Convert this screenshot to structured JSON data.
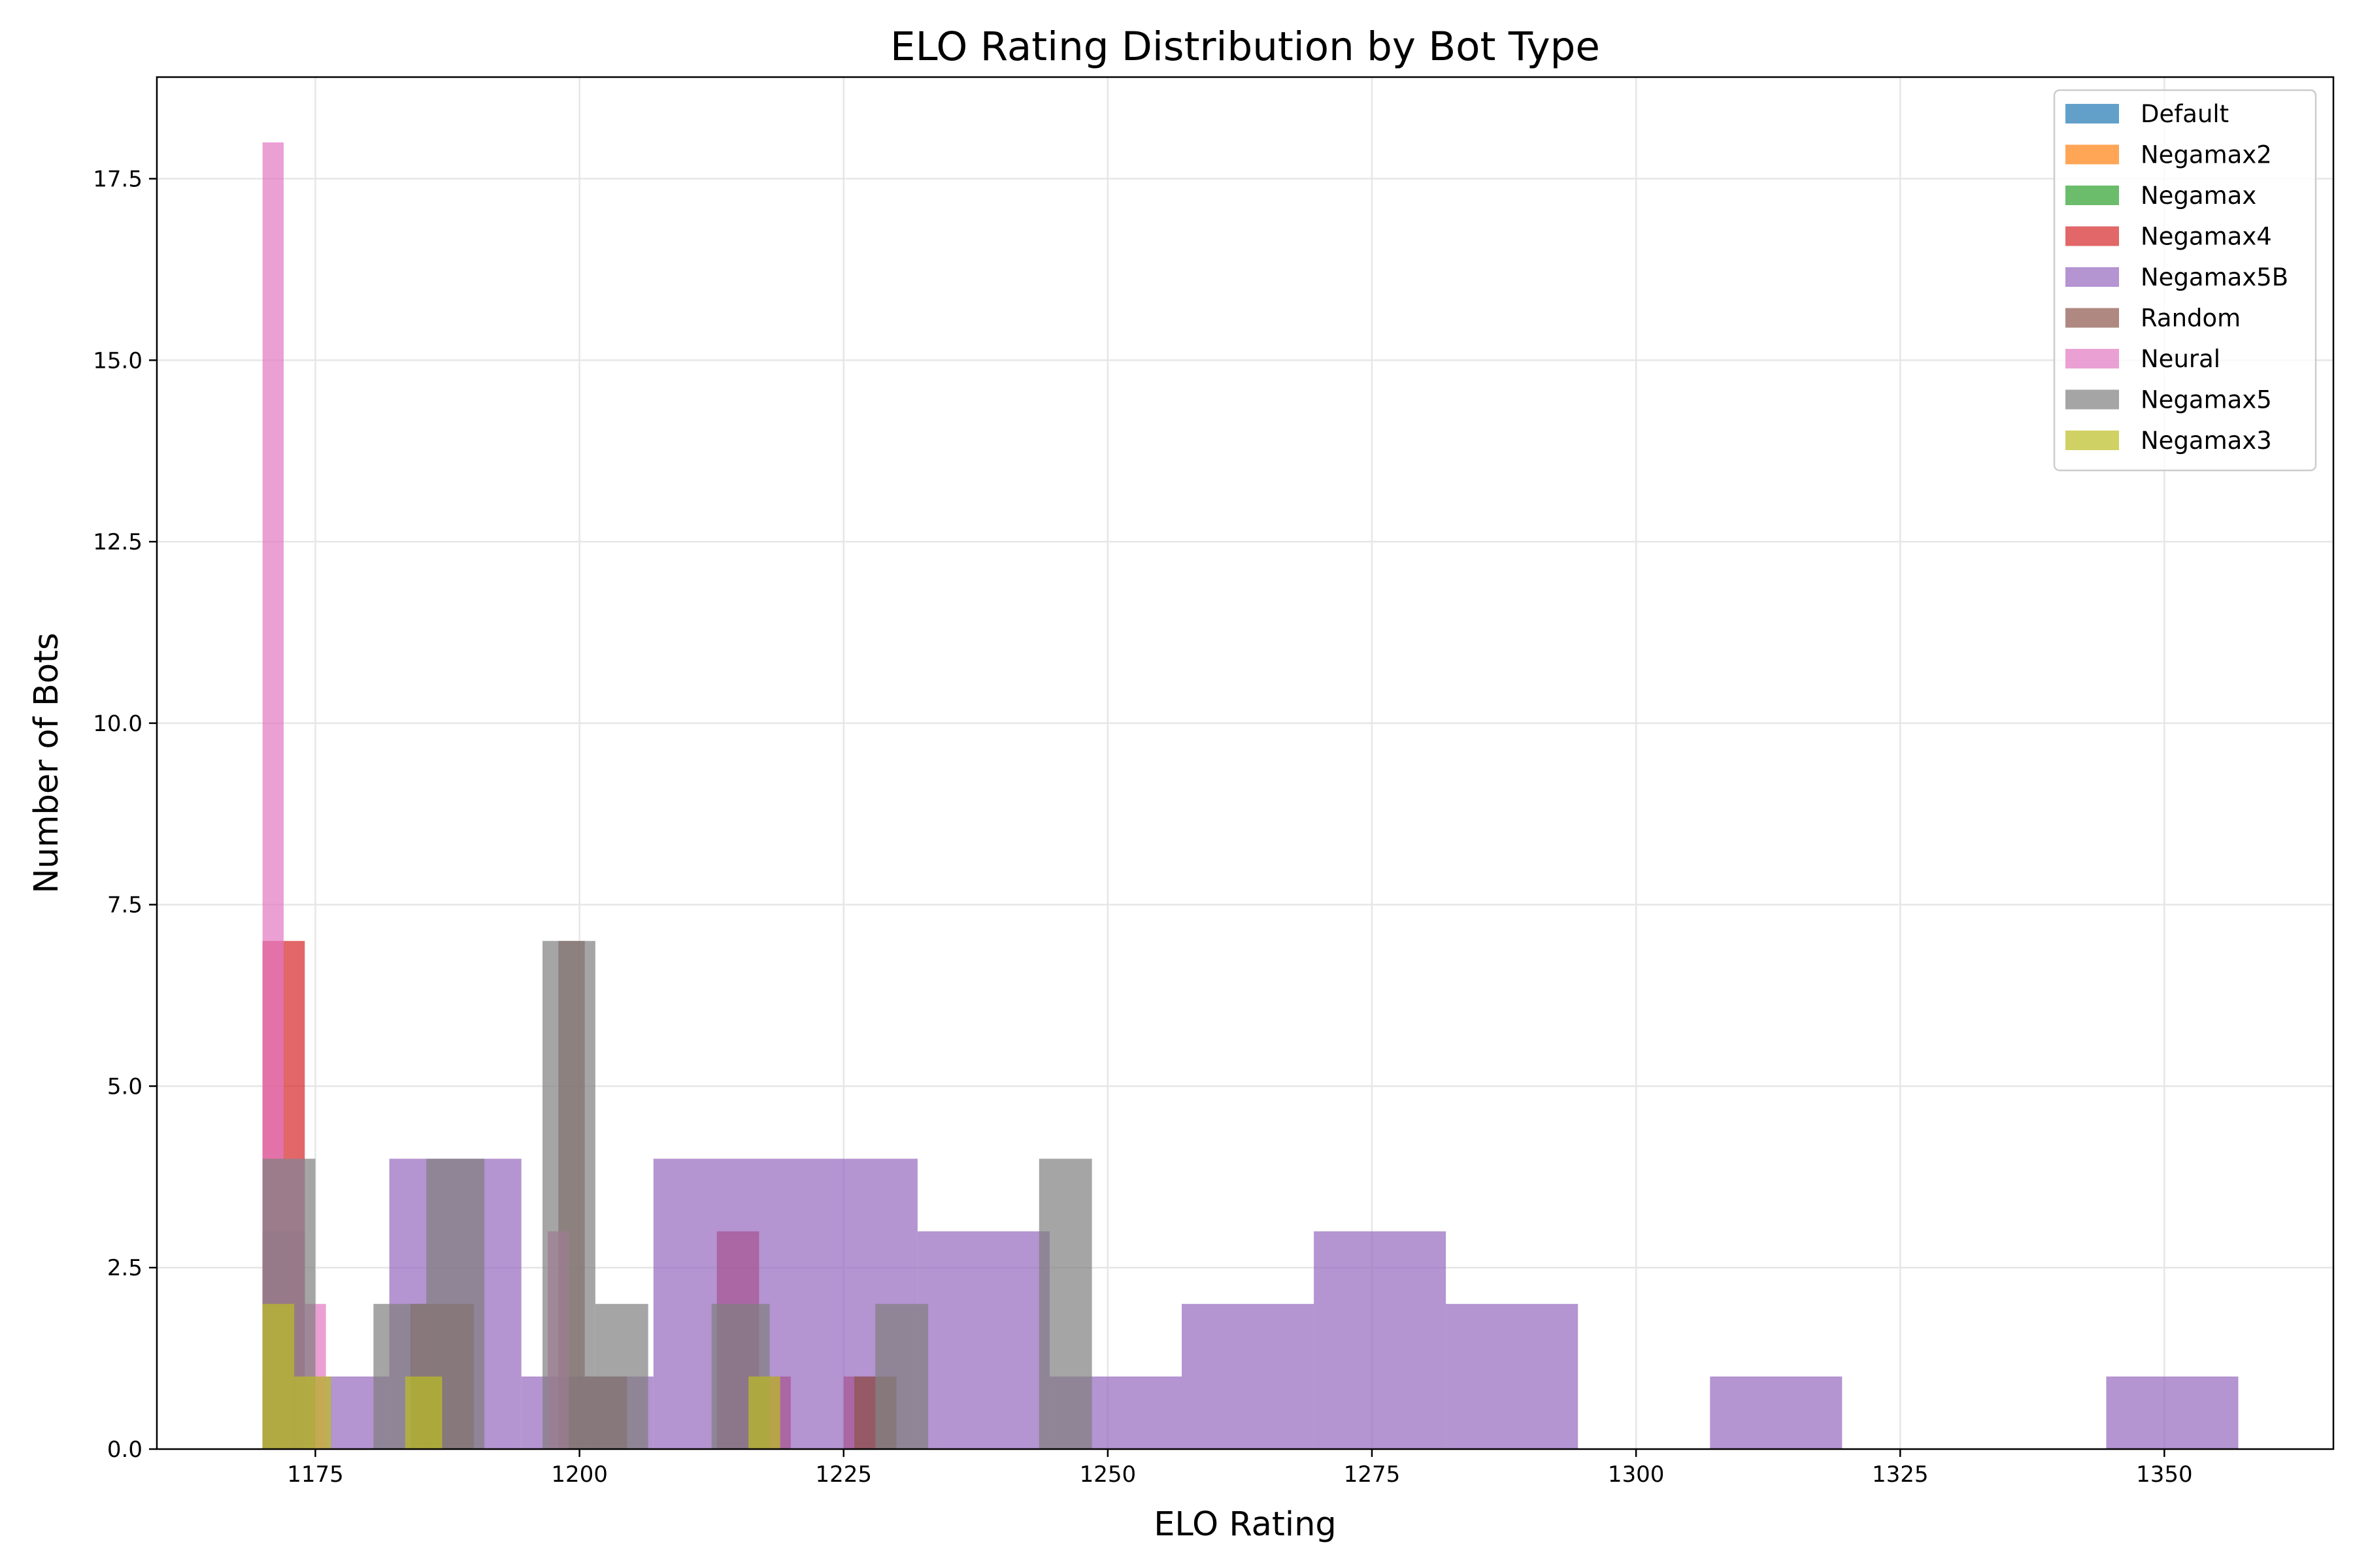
{
  "chart_data": {
    "type": "bar",
    "subtype": "histogram",
    "title": "ELO Rating Distribution by Bot Type",
    "xlabel": "ELO Rating",
    "ylabel": "Number of Bots",
    "xlim": [
      1160,
      1366
    ],
    "ylim": [
      0,
      18.9
    ],
    "xticks": [
      1175,
      1200,
      1225,
      1250,
      1275,
      1300,
      1325,
      1350
    ],
    "yticks": [
      0.0,
      2.5,
      5.0,
      7.5,
      10.0,
      12.5,
      15.0,
      17.5
    ],
    "grid": true,
    "legend_position": "top-right",
    "series": [
      {
        "name": "Default",
        "color": "#1f77b4",
        "bins": [
          [
            1170,
            1172.5,
            0
          ]
        ]
      },
      {
        "name": "Negamax2",
        "color": "#ff7f0e",
        "bins": [
          [
            1170,
            1172.5,
            0
          ]
        ]
      },
      {
        "name": "Negamax",
        "color": "#2ca02c",
        "bins": [
          [
            1170,
            1172.5,
            0
          ]
        ]
      },
      {
        "name": "Negamax4",
        "color": "#d62728",
        "bins": [
          [
            1170,
            1174.0,
            7
          ],
          [
            1213.0,
            1217.0,
            3
          ],
          [
            1217.0,
            1220.0,
            1
          ],
          [
            1225.0,
            1228.0,
            1
          ]
        ]
      },
      {
        "name": "Negamax5B",
        "color": "#9467bd",
        "bins": [
          [
            1170,
            1182.0,
            1
          ],
          [
            1182.0,
            1194.5,
            4
          ],
          [
            1194.5,
            1207.0,
            1
          ],
          [
            1207.0,
            1232.0,
            4
          ],
          [
            1232.0,
            1244.5,
            3
          ],
          [
            1244.5,
            1257.0,
            1
          ],
          [
            1257.0,
            1269.5,
            2
          ],
          [
            1269.5,
            1282.0,
            3
          ],
          [
            1282.0,
            1294.5,
            2
          ],
          [
            1307.0,
            1319.5,
            1
          ],
          [
            1344.5,
            1357.0,
            1
          ]
        ]
      },
      {
        "name": "Random",
        "color": "#8c564b",
        "bins": [
          [
            1170,
            1174.0,
            3
          ],
          [
            1184.0,
            1190.0,
            2
          ],
          [
            1198.0,
            1200.5,
            7
          ],
          [
            1200.5,
            1204.5,
            1
          ],
          [
            1226.0,
            1230.0,
            1
          ]
        ]
      },
      {
        "name": "Neural",
        "color": "#e377c2",
        "bins": [
          [
            1170,
            1172.0,
            18
          ],
          [
            1172.0,
            1174.0,
            4
          ],
          [
            1174.0,
            1176.0,
            2
          ],
          [
            1197.0,
            1199.0,
            3
          ]
        ]
      },
      {
        "name": "Negamax5",
        "color": "#7f7f7f",
        "bins": [
          [
            1170,
            1175.0,
            4
          ],
          [
            1180.5,
            1185.5,
            2
          ],
          [
            1185.5,
            1191.0,
            4
          ],
          [
            1196.5,
            1201.5,
            7
          ],
          [
            1201.5,
            1206.5,
            2
          ],
          [
            1212.5,
            1218.0,
            2
          ],
          [
            1228.0,
            1233.0,
            2
          ],
          [
            1243.5,
            1248.5,
            4
          ]
        ]
      },
      {
        "name": "Negamax3",
        "color": "#bcbd22",
        "bins": [
          [
            1170,
            1173.0,
            2
          ],
          [
            1173.0,
            1176.5,
            1
          ],
          [
            1183.5,
            1187.0,
            1
          ],
          [
            1216.0,
            1219.0,
            1
          ]
        ]
      }
    ]
  }
}
